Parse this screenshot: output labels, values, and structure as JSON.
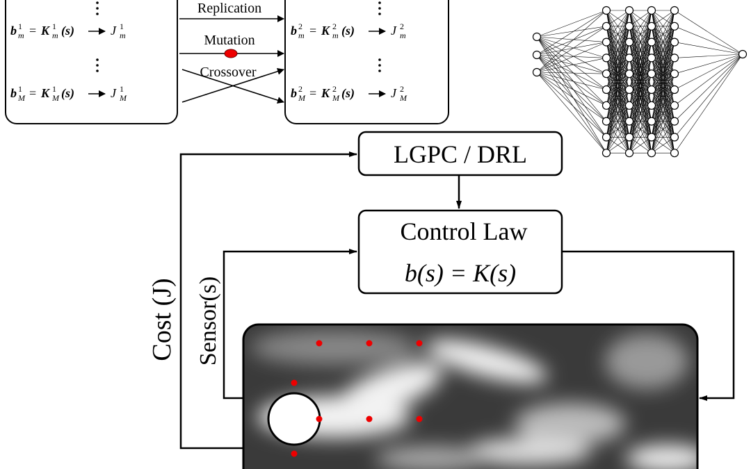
{
  "symbols": {
    "action": "b",
    "law": "K",
    "argument": "(s)",
    "equals": "=",
    "cost": "J"
  },
  "gen_boxes": [
    {
      "rows": [
        {
          "index": "m",
          "gen": "1"
        },
        {
          "index": "M",
          "gen": "1"
        }
      ]
    },
    {
      "rows": [
        {
          "index": "m",
          "gen": "2"
        },
        {
          "index": "M",
          "gen": "2"
        }
      ]
    }
  ],
  "operators": [
    "Replication",
    "Mutation",
    "Crossover"
  ],
  "learner": "LGPC / DRL",
  "control_law": {
    "title": "Control Law",
    "equation": "b(s) = K(s)"
  },
  "cost_label": "Cost (J)",
  "sensor_label": "Sensor(s)"
}
